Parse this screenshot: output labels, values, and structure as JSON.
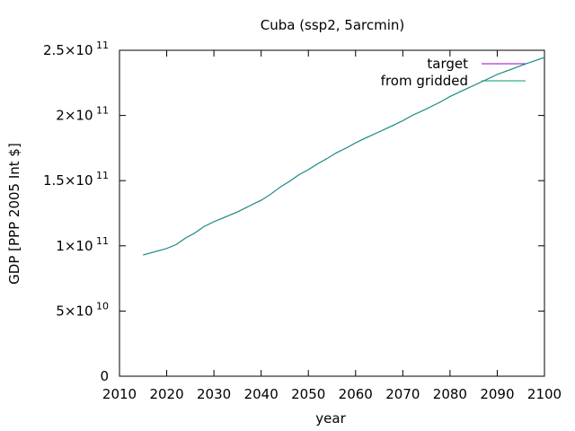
{
  "chart_data": {
    "type": "line",
    "title": "Cuba (ssp2, 5arcmin)",
    "xlabel": "year",
    "ylabel": "GDP [PPP 2005 Int $]",
    "xlim": [
      2010,
      2100
    ],
    "ylim": [
      0,
      250000000000
    ],
    "x_ticks": [
      "2010",
      "2020",
      "2030",
      "2040",
      "2050",
      "2060",
      "2070",
      "2080",
      "2090",
      "2100"
    ],
    "y_ticks": [
      {
        "value": 0,
        "mantissa": "0",
        "exponent": ""
      },
      {
        "value": 50000000000,
        "mantissa": "5×10",
        "exponent": "10"
      },
      {
        "value": 100000000000,
        "mantissa": "1×10",
        "exponent": "11"
      },
      {
        "value": 150000000000,
        "mantissa": "1.5×10",
        "exponent": "11"
      },
      {
        "value": 200000000000,
        "mantissa": "2×10",
        "exponent": "11"
      },
      {
        "value": 250000000000,
        "mantissa": "2.5×10",
        "exponent": "11"
      }
    ],
    "grid": false,
    "legend_position": "top-right",
    "series": [
      {
        "name": "target",
        "color": "#9400d3",
        "x": [
          2015,
          2018,
          2020,
          2022,
          2024,
          2026,
          2028,
          2030,
          2032,
          2035,
          2038,
          2040,
          2042,
          2044,
          2046,
          2048,
          2050,
          2052,
          2054,
          2056,
          2058,
          2060,
          2062,
          2065,
          2068,
          2070,
          2072,
          2075,
          2078,
          2080,
          2082,
          2085,
          2088,
          2090,
          2093,
          2096,
          2100
        ],
        "y": [
          93000000000,
          96000000000,
          98000000000,
          101000000000,
          106000000000,
          110000000000,
          115000000000,
          118500000000,
          121500000000,
          126000000000,
          131500000000,
          135000000000,
          139500000000,
          145000000000,
          149500000000,
          154500000000,
          158500000000,
          163000000000,
          167000000000,
          171500000000,
          175000000000,
          179000000000,
          182500000000,
          187500000000,
          192500000000,
          196000000000,
          200000000000,
          205000000000,
          210500000000,
          214500000000,
          218000000000,
          223000000000,
          228000000000,
          231500000000,
          235500000000,
          239500000000,
          244500000000
        ]
      },
      {
        "name": "from gridded",
        "color": "#009e73",
        "x": [
          2015,
          2018,
          2020,
          2022,
          2024,
          2026,
          2028,
          2030,
          2032,
          2035,
          2038,
          2040,
          2042,
          2044,
          2046,
          2048,
          2050,
          2052,
          2054,
          2056,
          2058,
          2060,
          2062,
          2065,
          2068,
          2070,
          2072,
          2075,
          2078,
          2080,
          2082,
          2085,
          2088,
          2090,
          2093,
          2096,
          2100
        ],
        "y": [
          93000000000,
          96000000000,
          98000000000,
          101000000000,
          106000000000,
          110000000000,
          115000000000,
          118500000000,
          121500000000,
          126000000000,
          131500000000,
          135000000000,
          139500000000,
          145000000000,
          149500000000,
          154500000000,
          158500000000,
          163000000000,
          167000000000,
          171500000000,
          175000000000,
          179000000000,
          182500000000,
          187500000000,
          192500000000,
          196000000000,
          200000000000,
          205000000000,
          210500000000,
          214500000000,
          218000000000,
          223000000000,
          228000000000,
          231500000000,
          235500000000,
          239500000000,
          244500000000
        ]
      }
    ]
  }
}
